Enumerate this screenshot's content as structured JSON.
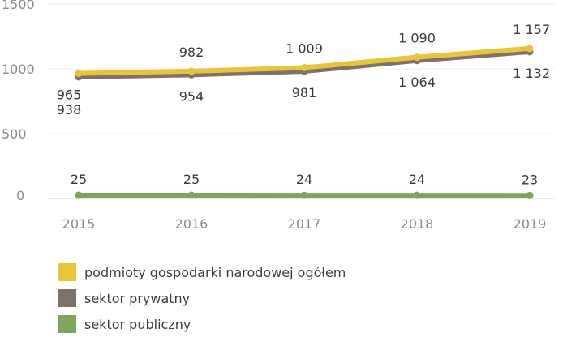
{
  "chart_data": {
    "type": "line",
    "x": [
      "2015",
      "2016",
      "2017",
      "2018",
      "2019"
    ],
    "yticks": [
      "1500",
      "1000",
      "500",
      "0"
    ],
    "ylim": [
      0,
      1500
    ],
    "grid": true,
    "legend_position": "bottom",
    "series": [
      {
        "name": "podmioty gospodarki narodowej ogółem",
        "color": "#e8c33c",
        "values": [
          965,
          982,
          1009,
          1090,
          1157
        ],
        "labels": [
          "965",
          "982",
          "1 009",
          "1 090",
          "1 157"
        ]
      },
      {
        "name": "sektor prywatny",
        "color": "#7e7368",
        "values": [
          938,
          954,
          981,
          1064,
          1132
        ],
        "labels": [
          "938",
          "954",
          "981",
          "1 064",
          "1 132"
        ]
      },
      {
        "name": "sektor publiczny",
        "color": "#7ea55a",
        "values": [
          25,
          25,
          24,
          24,
          23
        ],
        "labels": [
          "25",
          "25",
          "24",
          "24",
          "23"
        ]
      }
    ]
  }
}
